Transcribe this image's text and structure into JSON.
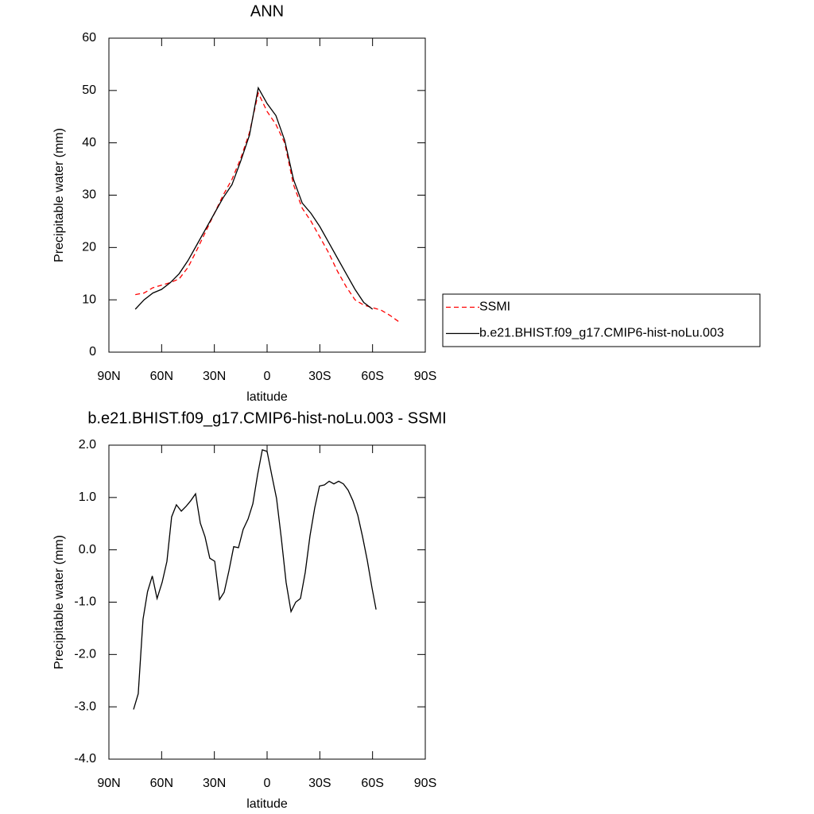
{
  "chart_data": [
    {
      "type": "line",
      "title": "ANN",
      "x_label": "latitude",
      "y_label": "Precipitable water (mm)",
      "x": [
        75,
        70,
        65,
        60,
        55,
        50,
        45,
        40,
        35,
        30,
        25,
        20,
        15,
        10,
        5,
        0,
        -5,
        -10,
        -15,
        -20,
        -25,
        -30,
        -35,
        -40,
        -45,
        -50,
        -55,
        -60,
        -65,
        -70,
        -75
      ],
      "series": [
        {
          "name": "SSMI",
          "color": "#ff0000",
          "line_style": "dashed",
          "values": [
            11,
            11.3,
            12.3,
            12.8,
            13.3,
            14,
            16.2,
            19.5,
            23,
            26.5,
            30,
            33,
            37,
            42,
            49.5,
            46,
            43.5,
            40,
            32,
            27.5,
            25,
            22,
            19,
            15.5,
            12.5,
            10,
            9,
            8.5,
            8,
            7,
            5.8
          ]
        },
        {
          "name": "b.e21.BHIST.f09_g17.CMIP6-hist-noLu.003",
          "color": "#000000",
          "line_style": "solid",
          "values": [
            8.2,
            10,
            11.3,
            12,
            13.3,
            15,
            17.5,
            20.5,
            23.5,
            26.5,
            29.5,
            32,
            36.5,
            41.5,
            50.5,
            47.5,
            45.2,
            40.5,
            33,
            28.5,
            26.5,
            24,
            21,
            18,
            15,
            12,
            9.5,
            8.2,
            null,
            null,
            null
          ]
        }
      ],
      "xlim": [
        90,
        -90
      ],
      "xticks": [
        {
          "value": 90,
          "label": "90N"
        },
        {
          "value": 60,
          "label": "60N"
        },
        {
          "value": 30,
          "label": "30N"
        },
        0,
        {
          "value": -30,
          "label": "30S"
        },
        {
          "value": -60,
          "label": "60S"
        },
        {
          "value": -90,
          "label": "90S"
        }
      ],
      "ylim": [
        0,
        60
      ],
      "yticks": [
        0,
        10,
        20,
        30,
        40,
        50,
        60
      ],
      "legend": "right"
    },
    {
      "type": "line",
      "title": "b.e21.BHIST.f09_g17.CMIP6-hist-noLu.003 - SSMI",
      "x_label": "latitude",
      "y_label": "Precipitable water (mm)",
      "x": [
        76,
        73.3,
        70.6,
        68,
        65.3,
        62.6,
        59.7,
        57,
        54.3,
        51.6,
        48.8,
        46.1,
        43.4,
        40.7,
        38,
        35.3,
        32.6,
        29.8,
        27.1,
        24.4,
        21.7,
        19,
        16.3,
        13.6,
        10.8,
        8.1,
        5.4,
        2.7,
        0,
        -2.7,
        -5.4,
        -8.1,
        -10.8,
        -13.6,
        -16.3,
        -19,
        -21.7,
        -24.4,
        -27.1,
        -29.8,
        -32.6,
        -35.3,
        -38,
        -40.7,
        -43.4,
        -46.1,
        -48.8,
        -51.6,
        -54.3,
        -57,
        -59.7,
        -62
      ],
      "series": [
        {
          "name": "b.e21.BHIST.f09_g17.CMIP6-hist-noLu.003 - SSMI",
          "color": "#000000",
          "line_style": "solid",
          "values": [
            -3.05,
            -2.75,
            -1.33,
            -0.8,
            -0.5,
            -0.93,
            -0.62,
            -0.22,
            0.63,
            0.86,
            0.74,
            0.83,
            0.94,
            1.07,
            0.51,
            0.25,
            -0.16,
            -0.22,
            -0.95,
            -0.81,
            -0.4,
            0.06,
            0.04,
            0.39,
            0.59,
            0.88,
            1.44,
            1.91,
            1.88,
            1.42,
            0.98,
            0.22,
            -0.62,
            -1.18,
            -1.0,
            -0.93,
            -0.43,
            0.27,
            0.8,
            1.22,
            1.24,
            1.31,
            1.26,
            1.31,
            1.26,
            1.14,
            0.94,
            0.66,
            0.25,
            -0.2,
            -0.73,
            -1.14
          ]
        }
      ],
      "xlim": [
        90,
        -90
      ],
      "xticks": [
        {
          "value": 90,
          "label": "90N"
        },
        {
          "value": 60,
          "label": "60N"
        },
        {
          "value": 30,
          "label": "30N"
        },
        0,
        {
          "value": -30,
          "label": "30S"
        },
        {
          "value": -60,
          "label": "60S"
        },
        {
          "value": -90,
          "label": "90S"
        }
      ],
      "ylim": [
        -4,
        2
      ],
      "yticks": [
        {
          "value": -4,
          "label": "-4.0"
        },
        {
          "value": -3,
          "label": "-3.0"
        },
        {
          "value": -2,
          "label": "-2.0"
        },
        {
          "value": -1,
          "label": "-1.0"
        },
        {
          "value": 0,
          "label": "0.0"
        },
        {
          "value": 1,
          "label": "1.0"
        },
        {
          "value": 2,
          "label": "2.0"
        }
      ]
    }
  ]
}
